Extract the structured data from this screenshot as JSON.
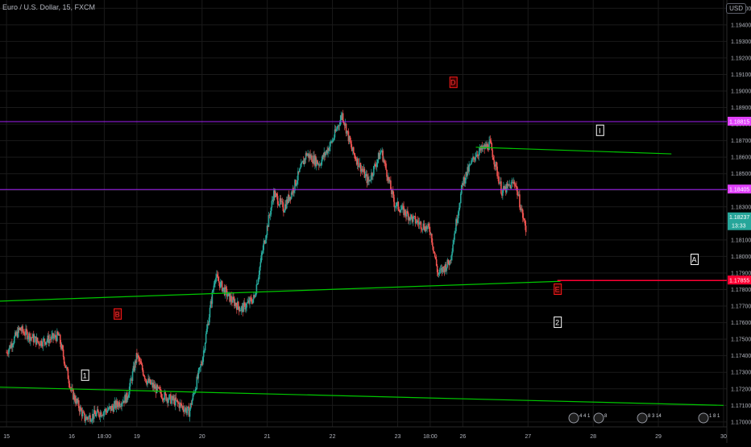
{
  "header": {
    "symbol_line": "Euro / U.S. Dollar, 15, FXCM",
    "currency_button": "USD"
  },
  "colors": {
    "background": "#000000",
    "grid": "#1a1a1a",
    "up_candle": "#26a69a",
    "down_candle": "#ef5350",
    "trendline": "#00c800",
    "magenta_line": "#a020f0",
    "magenta_tag": "#e040fb",
    "red_line": "#ff0033",
    "price_tag": "#26a69a",
    "axis_text": "#b2b5be"
  },
  "chart_data": {
    "type": "candlestick",
    "instrument": "Euro / U.S. Dollar",
    "timeframe": "15",
    "source": "FXCM",
    "x_tick_labels": [
      "15",
      "16",
      "18:00",
      "19",
      "20",
      "21",
      "22",
      "23",
      "18:00",
      "26",
      "27",
      "28",
      "29",
      "30"
    ],
    "y_tick_labels": [
      "1.17000",
      "1.17100",
      "1.17200",
      "1.17300",
      "1.17400",
      "1.17500",
      "1.17600",
      "1.17700",
      "1.17800",
      "1.17900",
      "1.18000",
      "1.18100",
      "1.18200",
      "1.18300",
      "1.18400",
      "1.18500",
      "1.18600",
      "1.18700",
      "1.18800",
      "1.18900",
      "1.19000",
      "1.19100",
      "1.19200",
      "1.19300",
      "1.19400",
      "1.19500"
    ],
    "ylim": [
      1.1697,
      1.1955
    ],
    "approx_path": [
      [
        15,
        1.1742
      ],
      [
        15.2,
        1.1756
      ],
      [
        15.5,
        1.1748
      ],
      [
        15.8,
        1.1752
      ],
      [
        16,
        1.1718
      ],
      [
        16.2,
        1.1702
      ],
      [
        16.6,
        1.1708
      ],
      [
        16.85,
        1.1715
      ],
      [
        17.0,
        1.174
      ],
      [
        17.15,
        1.1725
      ],
      [
        17.4,
        1.1716
      ],
      [
        17.6,
        1.1712
      ],
      [
        17.8,
        1.1706
      ],
      [
        18.0,
        1.1737
      ],
      [
        18.2,
        1.1788
      ],
      [
        18.4,
        1.1776
      ],
      [
        18.6,
        1.1768
      ],
      [
        18.8,
        1.1775
      ],
      [
        18.95,
        1.1808
      ],
      [
        19.1,
        1.1838
      ],
      [
        19.25,
        1.1829
      ],
      [
        19.4,
        1.1841
      ],
      [
        19.6,
        1.1862
      ],
      [
        19.8,
        1.1856
      ],
      [
        20.0,
        1.187
      ],
      [
        20.15,
        1.1886
      ],
      [
        20.3,
        1.1864
      ],
      [
        20.55,
        1.1845
      ],
      [
        20.75,
        1.1864
      ],
      [
        20.95,
        1.1832
      ],
      [
        21.25,
        1.1822
      ],
      [
        21.5,
        1.1816
      ],
      [
        21.62,
        1.1789
      ],
      [
        21.8,
        1.1797
      ],
      [
        22.0,
        1.1845
      ],
      [
        22.2,
        1.1862
      ],
      [
        22.42,
        1.1868
      ],
      [
        22.6,
        1.1839
      ],
      [
        22.8,
        1.1845
      ],
      [
        22.98,
        1.1814
      ]
    ],
    "annotations": {
      "wave_labels": [
        "D",
        "B",
        "I",
        "A",
        "E",
        "2",
        "1"
      ],
      "horizontal_levels": [
        {
          "label": "1.18815",
          "price": 1.18815
        },
        {
          "label": "1.18405",
          "price": 1.18405
        },
        {
          "label": "1.17855",
          "price": 1.17855
        }
      ],
      "last_price": {
        "label": "1.18237",
        "price": 1.18237,
        "countdown": "13:33"
      }
    },
    "trendlines": [
      {
        "from": [
          14.9,
          1.1773
        ],
        "to": [
          23.5,
          1.1785
        ]
      },
      {
        "from": [
          14.9,
          1.1721
        ],
        "to": [
          26,
          1.171
        ]
      },
      {
        "from": [
          22.2,
          1.1866
        ],
        "to": [
          25.2,
          1.1862
        ]
      }
    ],
    "ranges": {
      "x": [
        14.9,
        26.05
      ],
      "y": [
        1.1697,
        1.1955
      ]
    },
    "grid": true,
    "bottom_badges": [
      "4 4 1",
      "8",
      "8 3 14",
      "1 8 1"
    ]
  }
}
